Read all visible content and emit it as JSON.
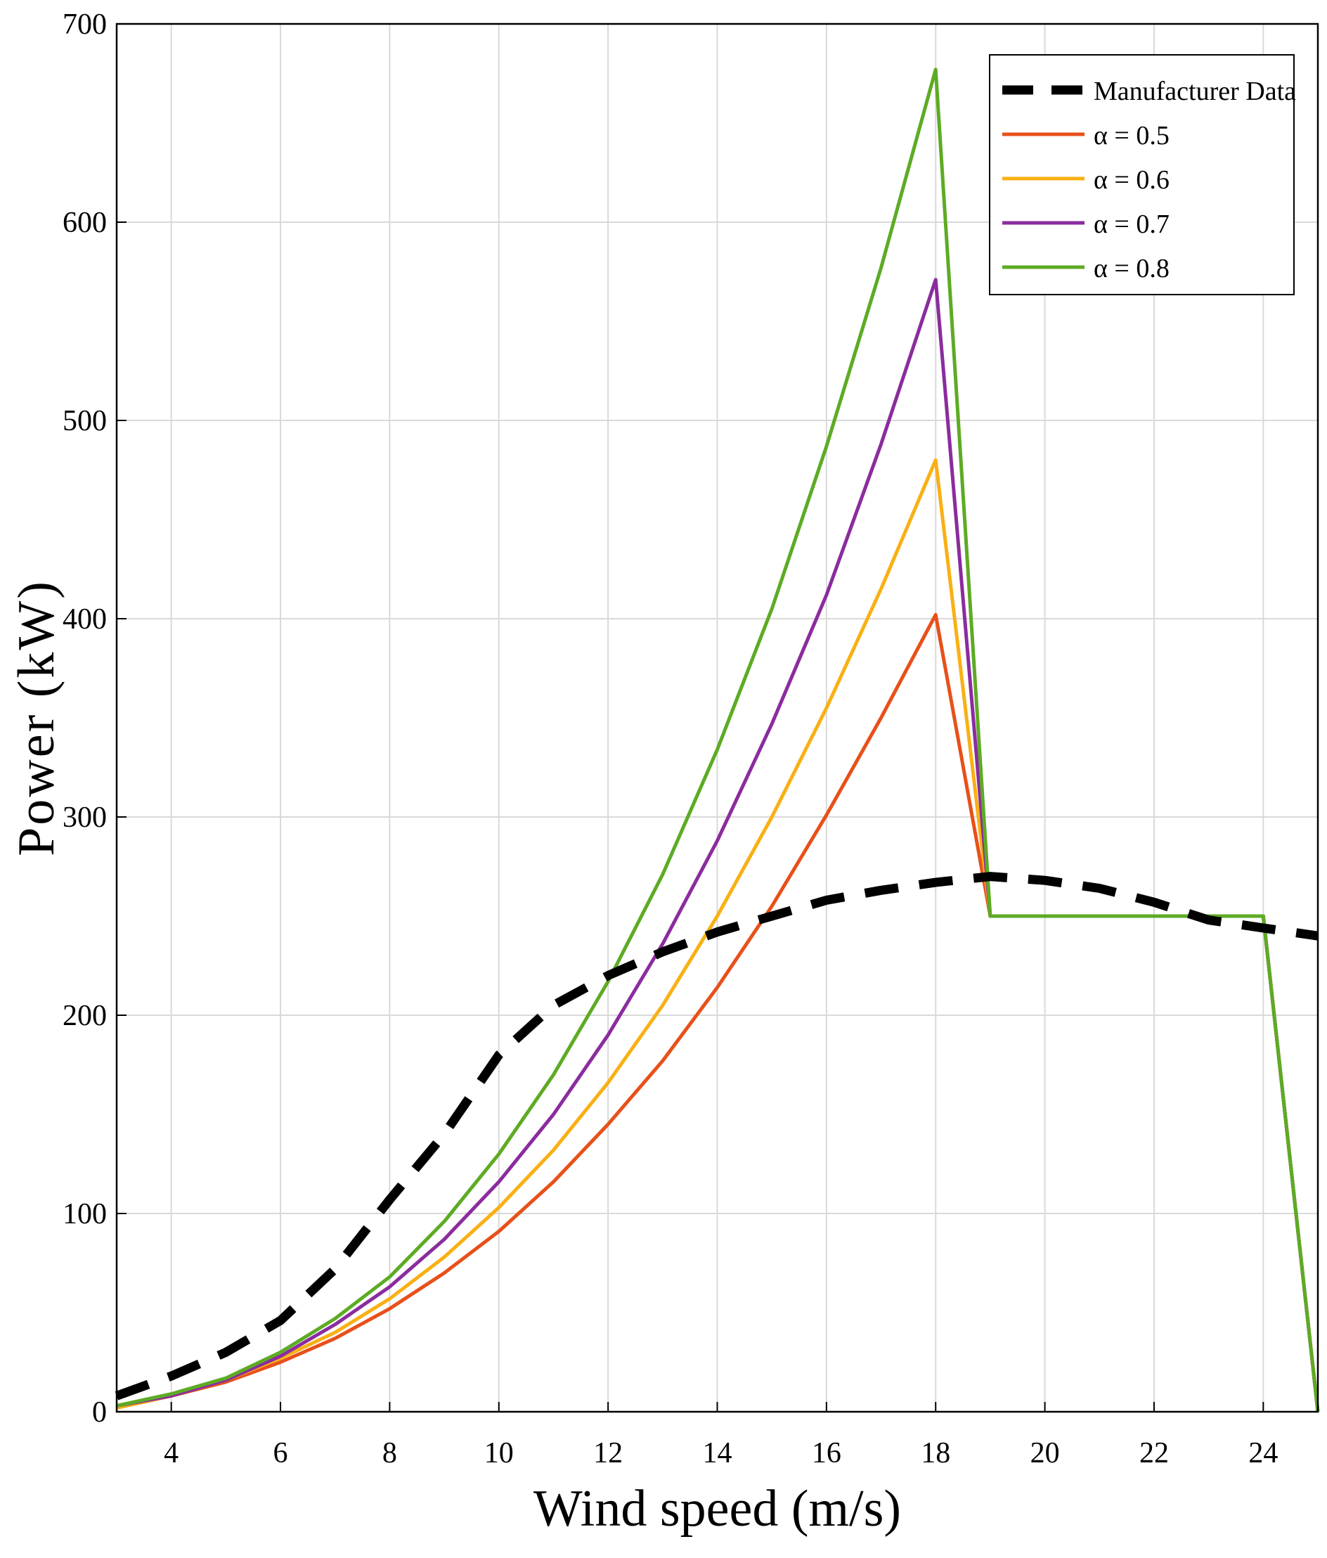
{
  "chart_data": {
    "type": "line",
    "title": "",
    "xlabel": "Wind speed (m/s)",
    "ylabel": "Power (kW)",
    "xlim": [
      3,
      25
    ],
    "ylim": [
      0,
      700
    ],
    "x_ticks": [
      4,
      6,
      8,
      10,
      12,
      14,
      16,
      18,
      20,
      22,
      24
    ],
    "y_ticks": [
      0,
      100,
      200,
      300,
      400,
      500,
      600,
      700
    ],
    "grid": true,
    "legend": {
      "placement": "top-right",
      "entries": [
        "Manufacturer Data",
        "α = 0.5",
        "α = 0.6",
        "α = 0.7",
        "α = 0.8"
      ]
    },
    "series": [
      {
        "name": "Manufacturer Data",
        "style": "dashed",
        "color": "#000000",
        "x": [
          3,
          4,
          5,
          6,
          7,
          8,
          9,
          10,
          11,
          12,
          13,
          14,
          15,
          16,
          17,
          18,
          19,
          20,
          21,
          22,
          23,
          24,
          25
        ],
        "y": [
          8,
          18,
          30,
          46,
          72,
          107,
          140,
          180,
          205,
          220,
          232,
          242,
          250,
          258,
          263,
          267,
          270,
          268,
          264,
          257,
          248,
          244,
          240
        ]
      },
      {
        "name": "α = 0.5",
        "style": "solid",
        "color": "#E8501A",
        "x": [
          3,
          4,
          5,
          6,
          7,
          8,
          9,
          10,
          11,
          12,
          13,
          14,
          15,
          16,
          17,
          18,
          19,
          20,
          21,
          22,
          23,
          24,
          25
        ],
        "y": [
          2,
          8,
          15,
          25,
          37,
          52,
          70,
          91,
          116,
          145,
          177,
          214,
          255,
          301,
          350,
          402,
          250,
          250,
          250,
          250,
          250,
          250,
          0
        ]
      },
      {
        "name": "α = 0.6",
        "style": "solid",
        "color": "#F9B014",
        "x": [
          3,
          4,
          5,
          6,
          7,
          8,
          9,
          10,
          11,
          12,
          13,
          14,
          15,
          16,
          17,
          18,
          19,
          20,
          21,
          22,
          23,
          24,
          25
        ],
        "y": [
          2,
          8,
          16,
          27,
          40,
          57,
          78,
          103,
          132,
          166,
          205,
          250,
          300,
          355,
          415,
          480,
          250,
          250,
          250,
          250,
          250,
          250,
          0
        ]
      },
      {
        "name": "α = 0.7",
        "style": "solid",
        "color": "#8B2C9E",
        "x": [
          3,
          4,
          5,
          6,
          7,
          8,
          9,
          10,
          11,
          12,
          13,
          14,
          15,
          16,
          17,
          18,
          19,
          20,
          21,
          22,
          23,
          24,
          25
        ],
        "y": [
          3,
          8,
          16,
          28,
          44,
          63,
          87,
          116,
          150,
          190,
          236,
          288,
          347,
          412,
          488,
          571,
          250,
          250,
          250,
          250,
          250,
          250,
          0
        ]
      },
      {
        "name": "α = 0.8",
        "style": "solid",
        "color": "#5DAB24",
        "x": [
          3,
          4,
          5,
          6,
          7,
          8,
          9,
          10,
          11,
          12,
          13,
          14,
          15,
          16,
          17,
          18,
          19,
          20,
          21,
          22,
          23,
          24,
          25
        ],
        "y": [
          3,
          9,
          17,
          30,
          47,
          68,
          96,
          130,
          170,
          217,
          271,
          334,
          405,
          487,
          577,
          677,
          250,
          250,
          250,
          250,
          250,
          250,
          0
        ]
      }
    ]
  }
}
